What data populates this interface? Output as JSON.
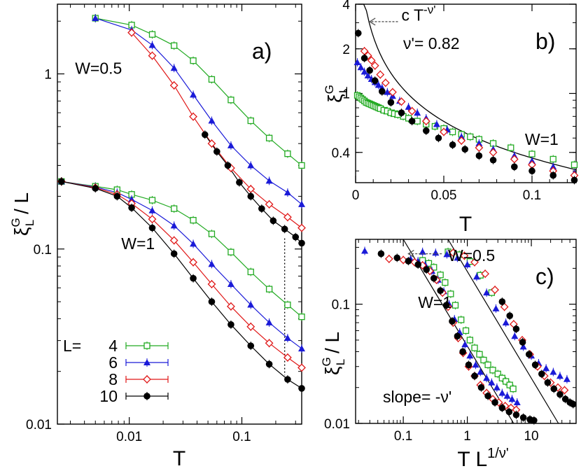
{
  "colors": {
    "L4": "#22aa22",
    "L6": "#1a1ad8",
    "L8": "#e01818",
    "L10": "#000000",
    "frame": "#000000"
  },
  "chart_data": [
    {
      "id": "a",
      "type": "line",
      "panel_label": "a)",
      "xlabel": "T",
      "ylabel_main": "ξ",
      "ylabel_sup": "G",
      "ylabel_sub": "L",
      "ylabel_rest": " / L",
      "xscale": "log",
      "yscale": "log",
      "xlim": [
        0.0023,
        0.34
      ],
      "ylim": [
        0.01,
        2.5
      ],
      "xticks": [
        {
          "v": 0.01,
          "label": "0.01"
        },
        {
          "v": 0.1,
          "label": "0.1"
        }
      ],
      "yticks": [
        {
          "v": 0.01,
          "label": "0.01"
        },
        {
          "v": 0.1,
          "label": "0.1"
        },
        {
          "v": 1,
          "label": "1"
        }
      ],
      "annotations": [
        {
          "text": "W=0.5",
          "x": 0.0033,
          "y": 1.0
        },
        {
          "text": "W=1",
          "x": 0.0085,
          "y": 0.1
        }
      ],
      "guide": {
        "x": 0.24,
        "y1": 0.019,
        "y2": 0.115
      },
      "legend": {
        "prefix": "L=",
        "entries": [
          "4",
          "6",
          "8",
          "10"
        ],
        "position": "bottom-left"
      },
      "series": [
        {
          "name": "4",
          "group": "W=0.5",
          "x": [
            0.005,
            0.0105,
            0.016,
            0.025,
            0.037,
            0.054,
            0.08,
            0.12,
            0.175,
            0.255,
            0.34
          ],
          "y": [
            2.08,
            1.9,
            1.68,
            1.45,
            1.19,
            0.93,
            0.71,
            0.54,
            0.43,
            0.35,
            0.3
          ]
        },
        {
          "name": "6",
          "group": "W=0.5",
          "x": [
            0.005,
            0.0105,
            0.016,
            0.025,
            0.037,
            0.054,
            0.08,
            0.12,
            0.175,
            0.255,
            0.34
          ],
          "y": [
            2.08,
            1.78,
            1.46,
            1.08,
            0.76,
            0.54,
            0.39,
            0.3,
            0.245,
            0.21,
            0.18
          ]
        },
        {
          "name": "8",
          "group": "W=0.5",
          "x": [
            0.0105,
            0.016,
            0.025,
            0.037,
            0.054,
            0.08,
            0.12,
            0.175,
            0.255,
            0.34
          ],
          "y": [
            1.72,
            1.27,
            0.86,
            0.57,
            0.4,
            0.29,
            0.22,
            0.18,
            0.152,
            0.132
          ]
        },
        {
          "name": "10",
          "group": "W=0.5",
          "x": [
            0.047,
            0.06,
            0.075,
            0.095,
            0.12,
            0.15,
            0.19,
            0.24,
            0.3,
            0.34
          ],
          "y": [
            0.45,
            0.36,
            0.3,
            0.24,
            0.2,
            0.17,
            0.145,
            0.13,
            0.117,
            0.108
          ]
        },
        {
          "name": "4",
          "group": "W=1",
          "x": [
            0.0025,
            0.005,
            0.0078,
            0.0105,
            0.016,
            0.025,
            0.037,
            0.054,
            0.08,
            0.12,
            0.175,
            0.255,
            0.34
          ],
          "y": [
            0.243,
            0.228,
            0.218,
            0.205,
            0.19,
            0.17,
            0.146,
            0.122,
            0.096,
            0.074,
            0.059,
            0.048,
            0.041
          ]
        },
        {
          "name": "6",
          "group": "W=1",
          "x": [
            0.0025,
            0.005,
            0.0078,
            0.0105,
            0.016,
            0.025,
            0.037,
            0.054,
            0.08,
            0.12,
            0.175,
            0.255,
            0.34
          ],
          "y": [
            0.243,
            0.226,
            0.21,
            0.192,
            0.166,
            0.136,
            0.107,
            0.082,
            0.063,
            0.048,
            0.038,
            0.031,
            0.027
          ]
        },
        {
          "name": "8",
          "group": "W=1",
          "x": [
            0.0025,
            0.005,
            0.0078,
            0.0105,
            0.016,
            0.025,
            0.037,
            0.054,
            0.08,
            0.12,
            0.175,
            0.255,
            0.34
          ],
          "y": [
            0.243,
            0.224,
            0.205,
            0.182,
            0.148,
            0.112,
            0.084,
            0.063,
            0.047,
            0.036,
            0.029,
            0.024,
            0.021
          ]
        },
        {
          "name": "10",
          "group": "W=1",
          "x": [
            0.0025,
            0.005,
            0.0078,
            0.0105,
            0.016,
            0.025,
            0.037,
            0.054,
            0.08,
            0.12,
            0.175,
            0.255,
            0.34
          ],
          "y": [
            0.243,
            0.222,
            0.2,
            0.172,
            0.132,
            0.094,
            0.068,
            0.05,
            0.037,
            0.028,
            0.022,
            0.018,
            0.016
          ]
        }
      ]
    },
    {
      "id": "b",
      "type": "scatter",
      "panel_label": "b)",
      "xlabel": "T",
      "ylabel_main": "ξ",
      "ylabel_sup": "G",
      "ylabel_sub": "L",
      "xscale": "linear",
      "yscale": "log",
      "xlim": [
        0,
        0.125
      ],
      "ylim": [
        0.25,
        4
      ],
      "xticks": [
        {
          "v": 0,
          "label": "0"
        },
        {
          "v": 0.05,
          "label": "0.05"
        },
        {
          "v": 0.1,
          "label": "0.1"
        }
      ],
      "yticks": [
        {
          "v": 0.4,
          "label": "0.4"
        },
        {
          "v": 1,
          "label": "1"
        },
        {
          "v": 2,
          "label": "2"
        },
        {
          "v": 4,
          "label": "4"
        }
      ],
      "annotations": [
        {
          "text": "W=1",
          "x": 0.096,
          "y": 0.45
        }
      ],
      "fit_label": {
        "text": "c T",
        "sup": "-ν'",
        "x": 0.026,
        "y": 3.1
      },
      "nu_label": {
        "text": "ν'= 0.82",
        "x": 0.027,
        "y": 2.0
      },
      "arrow": {
        "from": {
          "x": 0.024,
          "y": 3.05
        },
        "to": {
          "x": 0.008,
          "y": 3.05
        }
      },
      "fit": {
        "c": 0.0555,
        "exponent": 0.82,
        "xmin": 0.0015,
        "xmax": 0.125
      },
      "series": [
        {
          "name": "4",
          "x": [
            0.001,
            0.002,
            0.003,
            0.004,
            0.005,
            0.006,
            0.007,
            0.008,
            0.009,
            0.01,
            0.011,
            0.012,
            0.013,
            0.014,
            0.016,
            0.018,
            0.02,
            0.022,
            0.024,
            0.027,
            0.03,
            0.035,
            0.04,
            0.045,
            0.05,
            0.055,
            0.06,
            0.065,
            0.07,
            0.078,
            0.088,
            0.1,
            0.112,
            0.124
          ],
          "y": [
            0.97,
            0.95,
            0.93,
            0.91,
            0.89,
            0.87,
            0.86,
            0.85,
            0.84,
            0.83,
            0.82,
            0.81,
            0.8,
            0.79,
            0.77,
            0.76,
            0.74,
            0.73,
            0.72,
            0.7,
            0.68,
            0.65,
            0.62,
            0.6,
            0.58,
            0.55,
            0.53,
            0.51,
            0.49,
            0.46,
            0.43,
            0.39,
            0.36,
            0.33
          ]
        },
        {
          "name": "6",
          "x": [
            0.001,
            0.003,
            0.005,
            0.007,
            0.009,
            0.011,
            0.013,
            0.015,
            0.018,
            0.021,
            0.025,
            0.03,
            0.035,
            0.04,
            0.046,
            0.052,
            0.06,
            0.07,
            0.078,
            0.09,
            0.1,
            0.112,
            0.124
          ],
          "y": [
            1.62,
            1.5,
            1.4,
            1.32,
            1.25,
            1.19,
            1.14,
            1.09,
            1.02,
            0.96,
            0.89,
            0.81,
            0.74,
            0.68,
            0.62,
            0.57,
            0.51,
            0.46,
            0.42,
            0.38,
            0.35,
            0.32,
            0.29
          ]
        },
        {
          "name": "8",
          "x": [
            0.005,
            0.007,
            0.009,
            0.011,
            0.014,
            0.017,
            0.021,
            0.026,
            0.032,
            0.04,
            0.05,
            0.06,
            0.07,
            0.078,
            0.09,
            0.1,
            0.112,
            0.124
          ],
          "y": [
            1.93,
            1.8,
            1.67,
            1.54,
            1.34,
            1.18,
            1.02,
            0.88,
            0.76,
            0.65,
            0.55,
            0.48,
            0.43,
            0.4,
            0.36,
            0.33,
            0.3,
            0.28
          ]
        },
        {
          "name": "10",
          "x": [
            0.0015,
            0.005,
            0.008,
            0.011,
            0.015,
            0.02,
            0.026,
            0.032,
            0.04,
            0.047,
            0.055,
            0.062,
            0.07,
            0.078,
            0.09,
            0.1,
            0.112,
            0.124
          ],
          "y": [
            2.55,
            1.73,
            1.43,
            1.22,
            1.03,
            0.87,
            0.74,
            0.65,
            0.56,
            0.5,
            0.45,
            0.42,
            0.38,
            0.355,
            0.32,
            0.3,
            0.28,
            0.26
          ]
        }
      ]
    },
    {
      "id": "c",
      "type": "scatter",
      "panel_label": "c)",
      "xlabel": "T L",
      "xlabel_sup": "1/ν'",
      "ylabel_main": "ξ",
      "ylabel_sup": "G",
      "ylabel_sub": "L",
      "ylabel_rest": " / L",
      "xscale": "log",
      "yscale": "log",
      "xlim": [
        0.018,
        50
      ],
      "ylim": [
        0.01,
        0.35
      ],
      "xticks": [
        {
          "v": 0.1,
          "label": "0.1"
        },
        {
          "v": 1,
          "label": "1"
        },
        {
          "v": 10,
          "label": "10"
        }
      ],
      "yticks": [
        {
          "v": 0.01,
          "label": "0.01"
        },
        {
          "v": 0.1,
          "label": "0.1"
        }
      ],
      "annotations": [
        {
          "text": "W=0.5",
          "x": 0.5,
          "y": 0.23
        },
        {
          "text": "W=1",
          "x": 0.17,
          "y": 0.093
        },
        {
          "text": "slope= -ν'",
          "x": 0.048,
          "y": 0.015
        }
      ],
      "arrow": {
        "from": {
          "x": 0.4,
          "y": 0.265
        },
        "to": {
          "x": 0.12,
          "y": 0.265
        }
      },
      "lines": [
        {
          "x1": 0.1,
          "y1": 0.35,
          "x2": 5.3,
          "y2": 0.01
        },
        {
          "x1": 0.5,
          "y1": 0.35,
          "x2": 26.5,
          "y2": 0.01
        }
      ],
      "series": [
        {
          "name": "4",
          "group": "W=1",
          "x": [
            0.2,
            0.25,
            0.3,
            0.38,
            0.45,
            0.55,
            0.65,
            0.8,
            0.95,
            1.1,
            1.3,
            1.55,
            1.8,
            2.1,
            2.5,
            3.0,
            3.5,
            4.0,
            4.6,
            5.2
          ],
          "y": [
            0.233,
            0.22,
            0.204,
            0.176,
            0.152,
            0.122,
            0.098,
            0.074,
            0.06,
            0.05,
            0.043,
            0.038,
            0.034,
            0.031,
            0.028,
            0.026,
            0.024,
            0.0225,
            0.021,
            0.0195
          ]
        },
        {
          "name": "6",
          "group": "W=1",
          "x": [
            0.13,
            0.17,
            0.22,
            0.28,
            0.35,
            0.43,
            0.52,
            0.63,
            0.76,
            0.92,
            1.1,
            1.35,
            1.6,
            2.0,
            2.4,
            2.9,
            3.5,
            4.2,
            5.0,
            6.0
          ],
          "y": [
            0.24,
            0.23,
            0.214,
            0.19,
            0.16,
            0.128,
            0.1,
            0.075,
            0.058,
            0.046,
            0.037,
            0.031,
            0.027,
            0.024,
            0.022,
            0.02,
            0.018,
            0.017,
            0.016,
            0.015
          ]
        },
        {
          "name": "8",
          "group": "W=1",
          "x": [
            0.06,
            0.1,
            0.15,
            0.2,
            0.26,
            0.33,
            0.41,
            0.5,
            0.6,
            0.72,
            0.86,
            1.05,
            1.3,
            1.6,
            2.0,
            2.5,
            3.1,
            3.9,
            4.8,
            5.8
          ],
          "y": [
            0.24,
            0.235,
            0.225,
            0.212,
            0.19,
            0.16,
            0.125,
            0.095,
            0.07,
            0.052,
            0.039,
            0.03,
            0.025,
            0.021,
            0.018,
            0.016,
            0.015,
            0.014,
            0.0135,
            0.013
          ]
        },
        {
          "name": "10",
          "group": "W=1",
          "x": [
            0.045,
            0.08,
            0.12,
            0.17,
            0.23,
            0.3,
            0.38,
            0.47,
            0.58,
            0.7,
            0.85,
            1.05,
            1.3,
            1.65,
            2.1,
            2.7,
            3.5,
            4.5,
            5.8,
            7.5,
            9.5,
            11
          ],
          "y": [
            0.265,
            0.245,
            0.23,
            0.215,
            0.195,
            0.165,
            0.13,
            0.098,
            0.072,
            0.054,
            0.04,
            0.031,
            0.025,
            0.02,
            0.017,
            0.015,
            0.0135,
            0.0125,
            0.0118,
            0.0112,
            0.0108,
            0.0106
          ]
        },
        {
          "name": "4",
          "group": "W=0.5",
          "x": [
            0.5,
            0.75,
            1.1,
            1.6,
            2.4
          ],
          "y": [
            0.275,
            0.26,
            0.228,
            0.175,
            0.125
          ]
        },
        {
          "name": "6",
          "group": "W=0.5",
          "x": [
            0.025,
            0.2,
            0.32,
            0.48,
            0.7,
            1.0,
            1.4,
            2.0,
            2.8,
            4.0,
            5.5,
            7.5,
            10,
            13,
            17,
            22,
            28,
            36
          ],
          "y": [
            0.28,
            0.275,
            0.27,
            0.262,
            0.245,
            0.215,
            0.17,
            0.125,
            0.092,
            0.07,
            0.054,
            0.044,
            0.037,
            0.032,
            0.029,
            0.027,
            0.025,
            0.0235
          ]
        },
        {
          "name": "8",
          "group": "W=0.5",
          "x": [
            0.6,
            0.9,
            1.3,
            1.9,
            2.7,
            3.8,
            5.3,
            7.2,
            9.5,
            12.5,
            16,
            20,
            26,
            33
          ],
          "y": [
            0.27,
            0.255,
            0.225,
            0.18,
            0.132,
            0.095,
            0.068,
            0.05,
            0.038,
            0.03,
            0.025,
            0.022,
            0.02,
            0.019
          ]
        },
        {
          "name": "10",
          "group": "W=0.5",
          "x": [
            3.5,
            4.6,
            5.8,
            7.3,
            9.2,
            11.5,
            14.5,
            18,
            22.5,
            28,
            34,
            40,
            45
          ],
          "y": [
            0.105,
            0.08,
            0.062,
            0.048,
            0.038,
            0.031,
            0.026,
            0.022,
            0.0195,
            0.0175,
            0.016,
            0.015,
            0.0145
          ]
        }
      ]
    }
  ]
}
